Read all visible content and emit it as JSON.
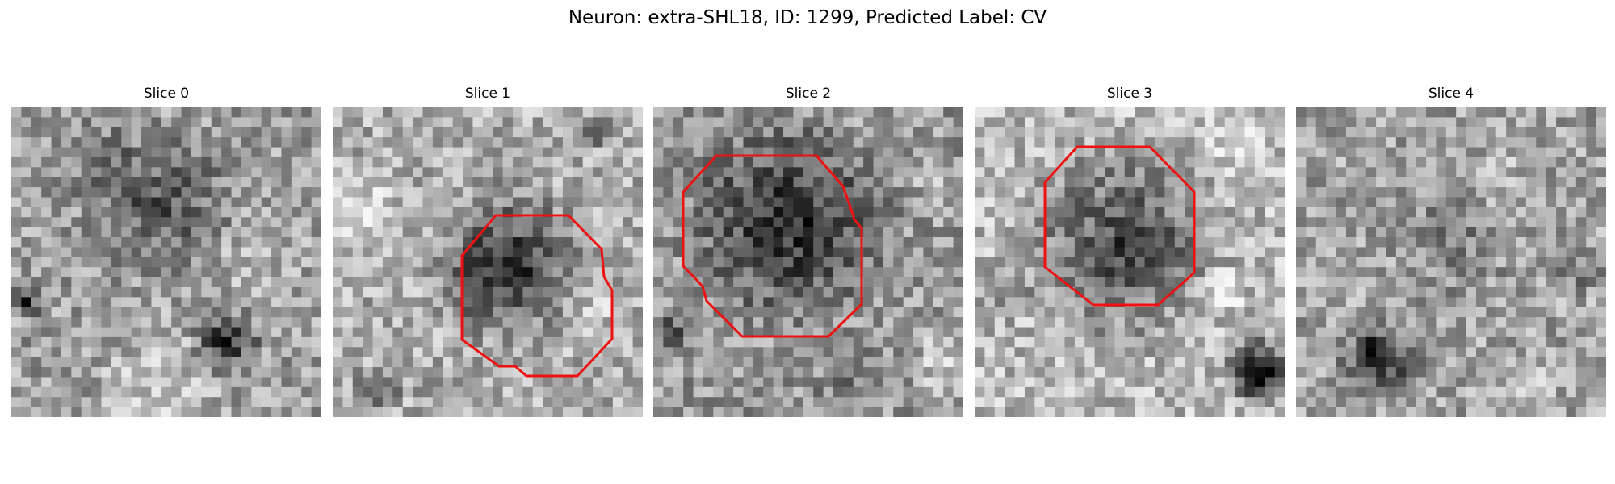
{
  "figure": {
    "title": "Neuron: extra-SHL18, ID: 1299, Predicted Label: CV"
  },
  "slices": [
    {
      "label": "Slice 0",
      "has_contour": false
    },
    {
      "label": "Slice 1",
      "has_contour": true
    },
    {
      "label": "Slice 2",
      "has_contour": true
    },
    {
      "label": "Slice 3",
      "has_contour": true
    },
    {
      "label": "Slice 4",
      "has_contour": false
    }
  ],
  "colors": {
    "contour": "#ee1111",
    "background": "#ffffff"
  }
}
